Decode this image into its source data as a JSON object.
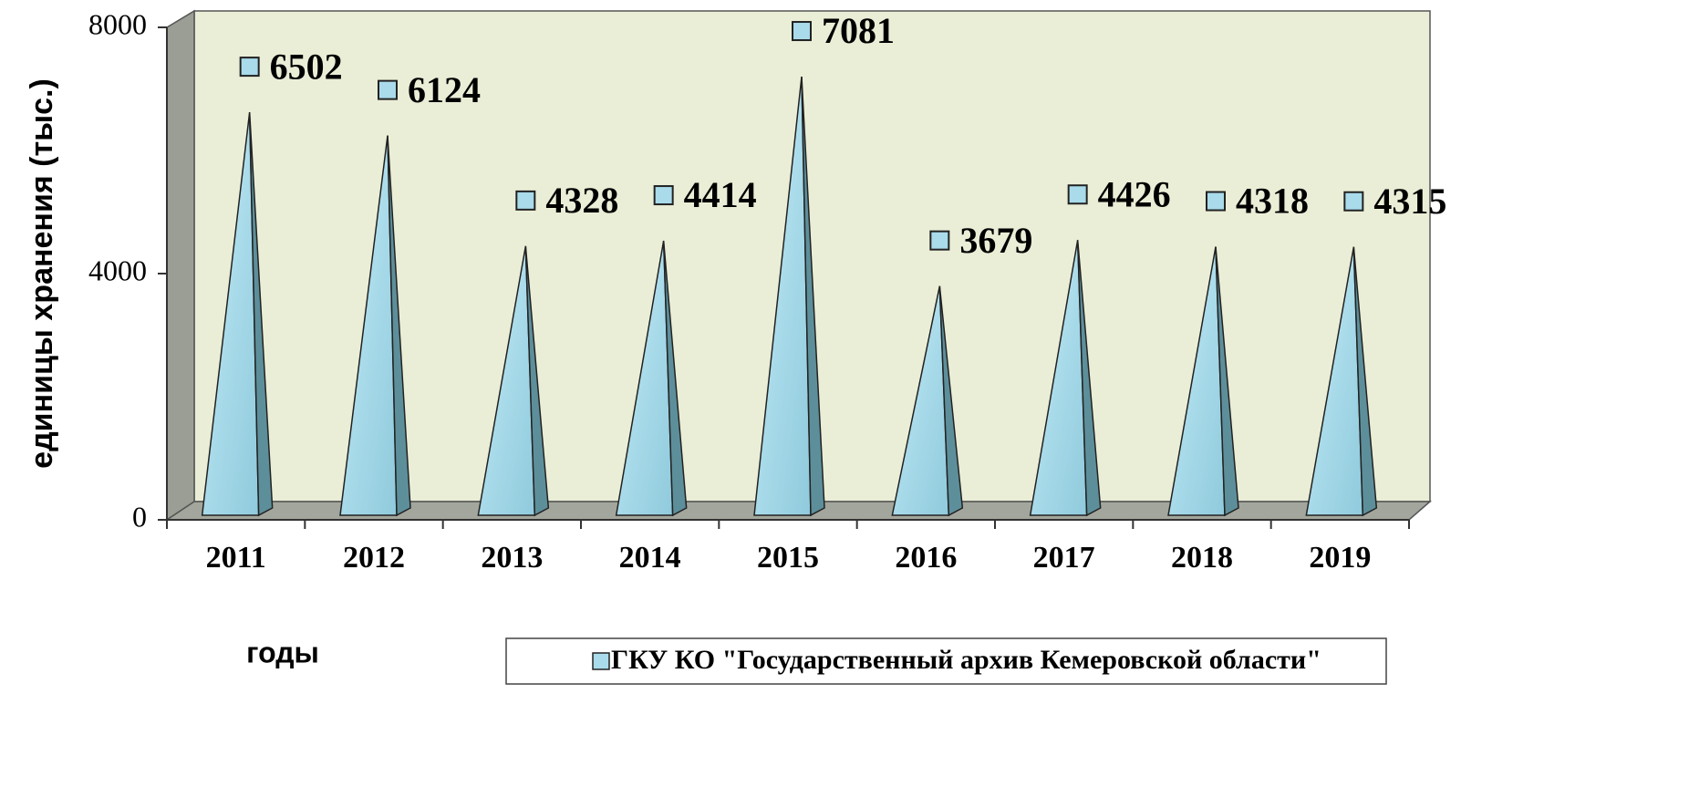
{
  "chart_data": {
    "type": "pyramid",
    "y_label": "единицы хранения (тыс.)",
    "x_label": "годы",
    "categories": [
      "2011",
      "2012",
      "2013",
      "2014",
      "2015",
      "2016",
      "2017",
      "2018",
      "2019"
    ],
    "series": [
      {
        "name": "ГКУ КО \"Государственный архив Кемеровской области\"",
        "color": "#a9dbea",
        "values": [
          6502,
          6124,
          4328,
          4414,
          7081,
          3679,
          4426,
          4318,
          4315
        ]
      }
    ],
    "ylim": [
      0,
      8000
    ],
    "yticks": [
      0,
      4000,
      8000
    ],
    "data_labels": true
  }
}
